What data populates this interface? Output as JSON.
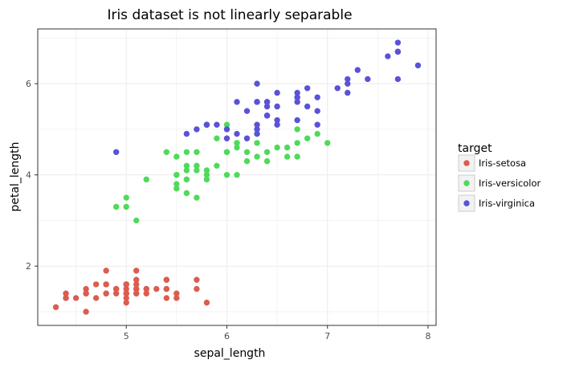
{
  "chart_data": {
    "type": "scatter",
    "title": "Iris dataset is not linearly separable",
    "xlabel": "sepal_length",
    "ylabel": "petal_length",
    "xlim": [
      4.12,
      8.08
    ],
    "ylim": [
      0.7,
      7.2
    ],
    "xticks": [
      5,
      6,
      7,
      8
    ],
    "yticks": [
      2,
      4,
      6
    ],
    "grid": true,
    "legend": {
      "title": "target",
      "position": "right",
      "entries": [
        "Iris-setosa",
        "Iris-versicolor",
        "Iris-virginica"
      ]
    },
    "series": [
      {
        "name": "Iris-setosa",
        "color": "#db5d4f",
        "points": [
          [
            5.1,
            1.4
          ],
          [
            4.9,
            1.4
          ],
          [
            4.7,
            1.3
          ],
          [
            4.6,
            1.5
          ],
          [
            5.0,
            1.4
          ],
          [
            5.4,
            1.7
          ],
          [
            4.6,
            1.4
          ],
          [
            5.0,
            1.5
          ],
          [
            4.4,
            1.4
          ],
          [
            4.9,
            1.5
          ],
          [
            5.4,
            1.5
          ],
          [
            4.8,
            1.6
          ],
          [
            4.8,
            1.4
          ],
          [
            4.3,
            1.1
          ],
          [
            5.8,
            1.2
          ],
          [
            5.7,
            1.5
          ],
          [
            5.4,
            1.3
          ],
          [
            5.1,
            1.4
          ],
          [
            5.7,
            1.7
          ],
          [
            5.1,
            1.5
          ],
          [
            5.4,
            1.7
          ],
          [
            5.1,
            1.5
          ],
          [
            4.6,
            1.0
          ],
          [
            5.1,
            1.7
          ],
          [
            4.8,
            1.9
          ],
          [
            5.0,
            1.6
          ],
          [
            5.0,
            1.6
          ],
          [
            5.2,
            1.5
          ],
          [
            5.2,
            1.4
          ],
          [
            4.7,
            1.6
          ],
          [
            4.8,
            1.6
          ],
          [
            5.4,
            1.5
          ],
          [
            5.2,
            1.5
          ],
          [
            5.5,
            1.4
          ],
          [
            4.9,
            1.5
          ],
          [
            5.0,
            1.2
          ],
          [
            5.5,
            1.3
          ],
          [
            4.9,
            1.5
          ],
          [
            4.4,
            1.3
          ],
          [
            5.1,
            1.5
          ],
          [
            5.0,
            1.3
          ],
          [
            4.5,
            1.3
          ],
          [
            4.4,
            1.3
          ],
          [
            5.0,
            1.6
          ],
          [
            5.1,
            1.9
          ],
          [
            4.8,
            1.4
          ],
          [
            5.1,
            1.6
          ],
          [
            4.6,
            1.4
          ],
          [
            5.3,
            1.5
          ],
          [
            5.0,
            1.4
          ]
        ]
      },
      {
        "name": "Iris-versicolor",
        "color": "#4fda5a",
        "points": [
          [
            7.0,
            4.7
          ],
          [
            6.4,
            4.5
          ],
          [
            6.9,
            4.9
          ],
          [
            5.5,
            4.0
          ],
          [
            6.5,
            4.6
          ],
          [
            5.7,
            4.5
          ],
          [
            6.3,
            4.7
          ],
          [
            4.9,
            3.3
          ],
          [
            6.6,
            4.6
          ],
          [
            5.2,
            3.9
          ],
          [
            5.0,
            3.5
          ],
          [
            5.9,
            4.2
          ],
          [
            6.0,
            4.0
          ],
          [
            6.1,
            4.7
          ],
          [
            5.6,
            3.6
          ],
          [
            6.7,
            4.4
          ],
          [
            5.6,
            4.5
          ],
          [
            5.8,
            4.1
          ],
          [
            6.2,
            4.5
          ],
          [
            5.6,
            3.9
          ],
          [
            5.9,
            4.8
          ],
          [
            6.1,
            4.0
          ],
          [
            6.3,
            4.9
          ],
          [
            6.1,
            4.7
          ],
          [
            6.4,
            4.3
          ],
          [
            6.6,
            4.4
          ],
          [
            6.8,
            4.8
          ],
          [
            6.7,
            5.0
          ],
          [
            6.0,
            4.5
          ],
          [
            5.7,
            3.5
          ],
          [
            5.5,
            3.8
          ],
          [
            5.5,
            3.7
          ],
          [
            5.8,
            3.9
          ],
          [
            6.0,
            5.1
          ],
          [
            5.4,
            4.5
          ],
          [
            6.0,
            4.5
          ],
          [
            6.7,
            4.7
          ],
          [
            6.3,
            4.4
          ],
          [
            5.6,
            4.1
          ],
          [
            5.5,
            4.0
          ],
          [
            5.5,
            4.4
          ],
          [
            6.1,
            4.6
          ],
          [
            5.8,
            4.0
          ],
          [
            5.0,
            3.3
          ],
          [
            5.6,
            4.2
          ],
          [
            5.7,
            4.2
          ],
          [
            5.7,
            4.2
          ],
          [
            6.2,
            4.3
          ],
          [
            5.1,
            3.0
          ],
          [
            5.7,
            4.1
          ]
        ]
      },
      {
        "name": "Iris-virginica",
        "color": "#5a52d7",
        "points": [
          [
            6.3,
            6.0
          ],
          [
            5.8,
            5.1
          ],
          [
            7.1,
            5.9
          ],
          [
            6.3,
            5.6
          ],
          [
            6.5,
            5.8
          ],
          [
            7.6,
            6.6
          ],
          [
            4.9,
            4.5
          ],
          [
            7.3,
            6.3
          ],
          [
            6.7,
            5.8
          ],
          [
            7.2,
            6.1
          ],
          [
            6.5,
            5.1
          ],
          [
            6.4,
            5.3
          ],
          [
            6.8,
            5.5
          ],
          [
            5.7,
            5.0
          ],
          [
            5.8,
            5.1
          ],
          [
            6.4,
            5.3
          ],
          [
            6.5,
            5.5
          ],
          [
            7.7,
            6.7
          ],
          [
            7.7,
            6.9
          ],
          [
            6.0,
            5.0
          ],
          [
            6.9,
            5.7
          ],
          [
            5.6,
            4.9
          ],
          [
            7.7,
            6.7
          ],
          [
            6.3,
            4.9
          ],
          [
            6.7,
            5.7
          ],
          [
            7.2,
            6.0
          ],
          [
            6.2,
            4.8
          ],
          [
            6.1,
            4.9
          ],
          [
            6.4,
            5.6
          ],
          [
            7.2,
            5.8
          ],
          [
            7.4,
            6.1
          ],
          [
            7.9,
            6.4
          ],
          [
            6.4,
            5.6
          ],
          [
            6.3,
            5.1
          ],
          [
            6.1,
            5.6
          ],
          [
            7.7,
            6.1
          ],
          [
            6.3,
            5.6
          ],
          [
            6.4,
            5.5
          ],
          [
            6.0,
            4.8
          ],
          [
            6.9,
            5.4
          ],
          [
            6.7,
            5.6
          ],
          [
            6.9,
            5.1
          ],
          [
            5.8,
            5.1
          ],
          [
            6.8,
            5.9
          ],
          [
            6.7,
            5.7
          ],
          [
            6.7,
            5.2
          ],
          [
            6.3,
            5.0
          ],
          [
            6.5,
            5.2
          ],
          [
            6.2,
            5.4
          ],
          [
            5.9,
            5.1
          ]
        ]
      }
    ]
  }
}
